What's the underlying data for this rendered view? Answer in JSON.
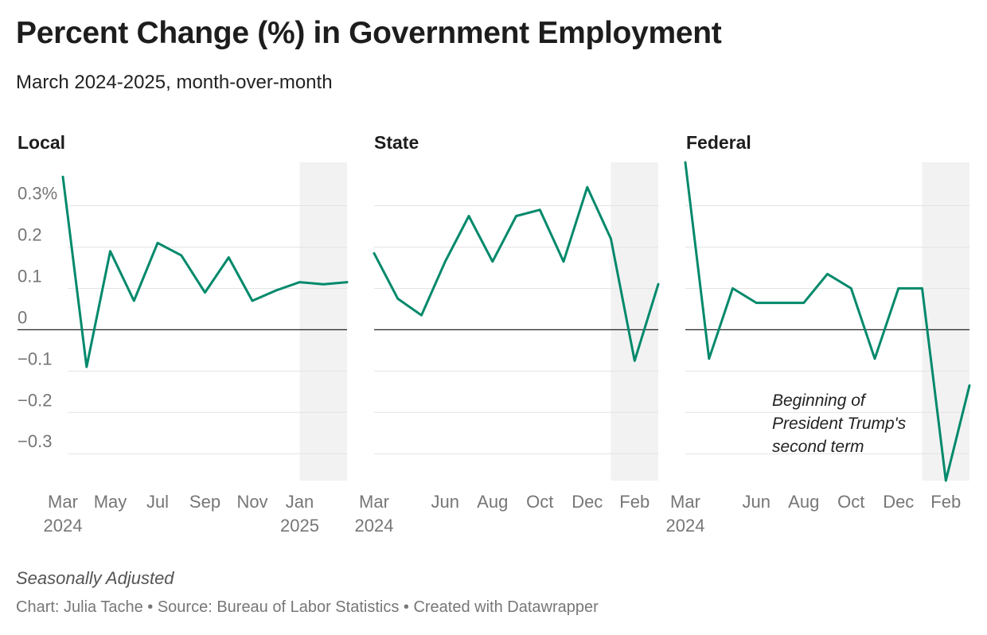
{
  "title": "Percent Change (%) in Government Employment",
  "subtitle": "March 2024-2025, month-over-month",
  "note": "Seasonally Adjusted",
  "footer": "Chart: Julia Tache • Source: Bureau of Labor Statistics • Created with Datawrapper",
  "colors": {
    "line": "#00896b",
    "shade": "#f2f2f2",
    "grid": "#e3e3e3",
    "zero": "#222222"
  },
  "chart_data": [
    {
      "type": "line",
      "title": "Local",
      "x": [
        "Mar 2024",
        "Apr 2024",
        "May 2024",
        "Jun 2024",
        "Jul 2024",
        "Aug 2024",
        "Sep 2024",
        "Oct 2024",
        "Nov 2024",
        "Dec 2024",
        "Jan 2025",
        "Feb 2025",
        "Mar 2025"
      ],
      "values": [
        0.37,
        -0.09,
        0.19,
        0.07,
        0.21,
        0.18,
        0.09,
        0.175,
        0.07,
        0.095,
        0.115,
        0.11,
        0.115
      ],
      "x_tick_labels": [
        {
          "index": 0,
          "line1": "Mar",
          "line2": "2024"
        },
        {
          "index": 2,
          "line1": "May",
          "line2": ""
        },
        {
          "index": 4,
          "line1": "Jul",
          "line2": ""
        },
        {
          "index": 6,
          "line1": "Sep",
          "line2": ""
        },
        {
          "index": 8,
          "line1": "Nov",
          "line2": ""
        },
        {
          "index": 10,
          "line1": "Jan",
          "line2": "2025"
        }
      ],
      "y_tick_labels": [
        "0.3%",
        "0.2",
        "0.1",
        "0",
        "−0.1",
        "−0.2",
        "−0.3"
      ],
      "shaded_from_index": 10,
      "annotation": []
    },
    {
      "type": "line",
      "title": "State",
      "x": [
        "Mar 2024",
        "Apr 2024",
        "May 2024",
        "Jun 2024",
        "Jul 2024",
        "Aug 2024",
        "Sep 2024",
        "Oct 2024",
        "Nov 2024",
        "Dec 2024",
        "Jan 2025",
        "Feb 2025",
        "Mar 2025"
      ],
      "values": [
        0.185,
        0.075,
        0.035,
        0.165,
        0.275,
        0.165,
        0.275,
        0.29,
        0.165,
        0.345,
        0.22,
        -0.075,
        0.11
      ],
      "x_tick_labels": [
        {
          "index": 0,
          "line1": "Mar",
          "line2": "2024"
        },
        {
          "index": 3,
          "line1": "Jun",
          "line2": ""
        },
        {
          "index": 5,
          "line1": "Aug",
          "line2": ""
        },
        {
          "index": 7,
          "line1": "Oct",
          "line2": ""
        },
        {
          "index": 9,
          "line1": "Dec",
          "line2": ""
        },
        {
          "index": 11,
          "line1": "Feb",
          "line2": ""
        }
      ],
      "y_tick_labels": [],
      "shaded_from_index": 10,
      "annotation": []
    },
    {
      "type": "line",
      "title": "Federal",
      "x": [
        "Mar 2024",
        "Apr 2024",
        "May 2024",
        "Jun 2024",
        "Jul 2024",
        "Aug 2024",
        "Sep 2024",
        "Oct 2024",
        "Nov 2024",
        "Dec 2024",
        "Jan 2025",
        "Feb 2025",
        "Mar 2025"
      ],
      "values": [
        0.405,
        -0.07,
        0.1,
        0.065,
        0.065,
        0.065,
        0.135,
        0.1,
        -0.07,
        0.1,
        0.1,
        -0.365,
        -0.135
      ],
      "x_tick_labels": [
        {
          "index": 0,
          "line1": "Mar",
          "line2": "2024"
        },
        {
          "index": 3,
          "line1": "Jun",
          "line2": ""
        },
        {
          "index": 5,
          "line1": "Aug",
          "line2": ""
        },
        {
          "index": 7,
          "line1": "Oct",
          "line2": ""
        },
        {
          "index": 9,
          "line1": "Dec",
          "line2": ""
        },
        {
          "index": 11,
          "line1": "Feb",
          "line2": ""
        }
      ],
      "y_tick_labels": [],
      "shaded_from_index": 10,
      "annotation": [
        "Beginning of",
        "President Trump's",
        "second term"
      ]
    }
  ],
  "y_axis": {
    "min": -0.365,
    "max": 0.405,
    "gridlines": [
      0.3,
      0.2,
      0.1,
      0,
      -0.1,
      -0.2,
      -0.3
    ]
  }
}
